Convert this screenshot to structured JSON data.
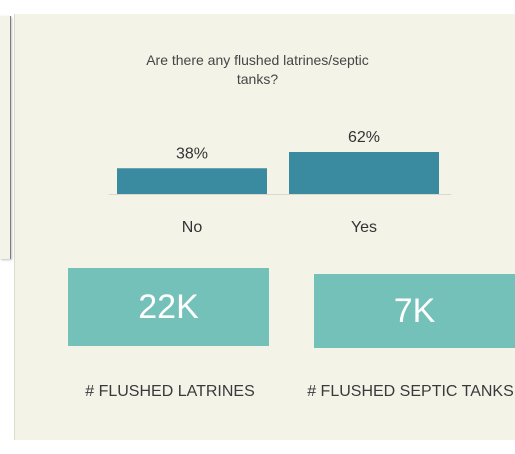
{
  "chart_data": {
    "type": "bar",
    "title": "Are there any flushed latrines/septic tanks?",
    "categories": [
      "No",
      "Yes"
    ],
    "values": [
      38,
      62
    ],
    "data_labels": [
      "38%",
      "62%"
    ],
    "ylim": [
      0,
      62
    ],
    "grid": false,
    "bar_color": "#3a8aa0"
  },
  "kpis": [
    {
      "value": "22K",
      "label": "# FLUSHED LATRINES"
    },
    {
      "value": "7K",
      "label": "# FLUSHED SEPTIC TANKS"
    }
  ],
  "colors": {
    "panel_bg": "#f4f3e8",
    "kpi_bg": "#74c1b9",
    "bar": "#3a8aa0"
  }
}
